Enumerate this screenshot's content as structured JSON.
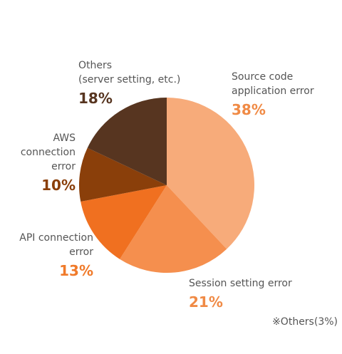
{
  "chart_data": {
    "type": "pie",
    "categories": [
      "Source code\napplication error",
      "Session setting error",
      "API connection\nerror",
      "AWS\nconnection\nerror",
      "Others\n(server setting, etc.)"
    ],
    "values": [
      38,
      21,
      13,
      10,
      18
    ],
    "value_labels": [
      "38%",
      "21%",
      "13%",
      "10%",
      "18%"
    ],
    "colors": [
      "#f7ab7a",
      "#f58f4e",
      "#f07020",
      "#8a3f0a",
      "#573520"
    ],
    "label_colors": [
      "#f08a45",
      "#f08a45",
      "#f07a2a",
      "#8a3f0a",
      "#573520"
    ],
    "note": "※Others(3%)"
  }
}
